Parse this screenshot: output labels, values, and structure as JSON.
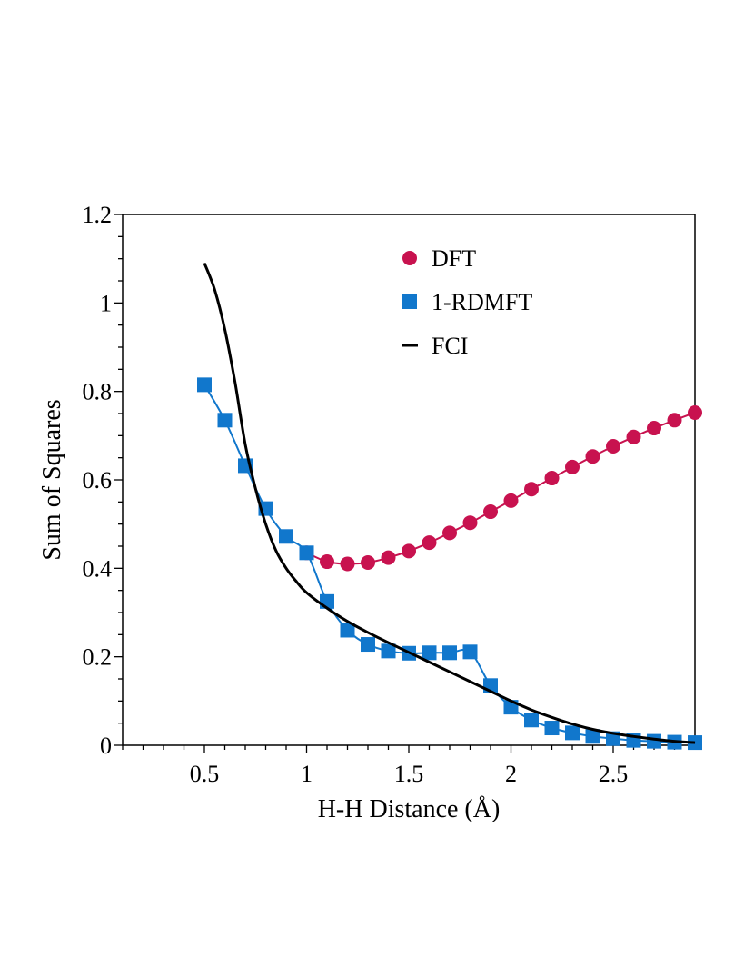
{
  "chart_data": {
    "type": "line",
    "xlabel": "H-H Distance (Å)",
    "ylabel": "Sum of Squares",
    "xlim": [
      0.1,
      2.9
    ],
    "ylim": [
      0,
      1.2
    ],
    "x_ticks": [
      0.5,
      1,
      1.5,
      2,
      2.5
    ],
    "y_ticks": [
      0,
      0.2,
      0.4,
      0.6,
      0.8,
      1,
      1.2
    ],
    "x_tick_labels": [
      "0.5",
      "1",
      "1.5",
      "2",
      "2.5"
    ],
    "y_tick_labels": [
      "0",
      "0.2",
      "0.4",
      "0.6",
      "0.8",
      "1",
      "1.2"
    ],
    "grid": false,
    "legend_position": "top-right",
    "series": [
      {
        "name": "DFT",
        "marker": "circle",
        "color": "#c8124f",
        "x": [
          1.0,
          1.1,
          1.2,
          1.3,
          1.4,
          1.5,
          1.6,
          1.7,
          1.8,
          1.9,
          2.0,
          2.1,
          2.2,
          2.3,
          2.4,
          2.5,
          2.6,
          2.7,
          2.8,
          2.9
        ],
        "y": [
          0.435,
          0.415,
          0.41,
          0.413,
          0.424,
          0.439,
          0.458,
          0.48,
          0.503,
          0.528,
          0.553,
          0.579,
          0.604,
          0.629,
          0.653,
          0.676,
          0.697,
          0.717,
          0.735,
          0.752
        ]
      },
      {
        "name": "1-RDMFT",
        "marker": "square",
        "color": "#1177cc",
        "x": [
          0.5,
          0.6,
          0.7,
          0.8,
          0.9,
          1.0,
          1.1,
          1.2,
          1.3,
          1.4,
          1.5,
          1.6,
          1.7,
          1.8,
          1.9,
          2.0,
          2.1,
          2.2,
          2.3,
          2.4,
          2.5,
          2.6,
          2.7,
          2.8,
          2.9
        ],
        "y": [
          0.815,
          0.735,
          0.632,
          0.535,
          0.472,
          0.435,
          0.325,
          0.26,
          0.228,
          0.213,
          0.208,
          0.209,
          0.209,
          0.211,
          0.135,
          0.086,
          0.057,
          0.039,
          0.028,
          0.02,
          0.015,
          0.011,
          0.009,
          0.007,
          0.006
        ]
      },
      {
        "name": "FCI",
        "marker": "none",
        "color": "#000000",
        "x": [
          0.5,
          0.55,
          0.6,
          0.65,
          0.7,
          0.75,
          0.8,
          0.85,
          0.9,
          0.95,
          1.0,
          1.1,
          1.2,
          1.3,
          1.4,
          1.5,
          1.6,
          1.7,
          1.8,
          1.9,
          2.0,
          2.1,
          2.2,
          2.3,
          2.4,
          2.5,
          2.6,
          2.7,
          2.8,
          2.9
        ],
        "y": [
          1.09,
          1.03,
          0.94,
          0.82,
          0.68,
          0.58,
          0.5,
          0.44,
          0.4,
          0.37,
          0.345,
          0.31,
          0.28,
          0.255,
          0.232,
          0.21,
          0.188,
          0.166,
          0.144,
          0.122,
          0.1,
          0.08,
          0.063,
          0.048,
          0.036,
          0.027,
          0.02,
          0.014,
          0.009,
          0.006
        ]
      }
    ]
  }
}
